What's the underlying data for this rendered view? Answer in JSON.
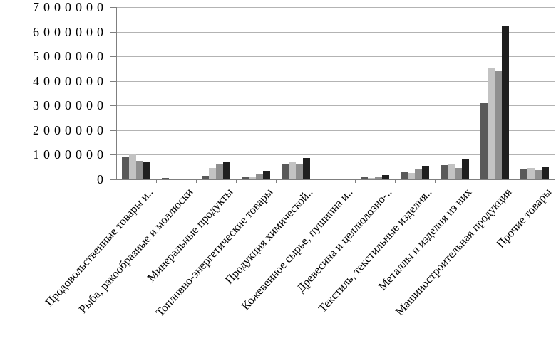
{
  "chart_data": {
    "type": "bar",
    "title": "",
    "xlabel": "",
    "ylabel": "",
    "legend": "none",
    "grid": "horizontal",
    "ylim": [
      0,
      7000000
    ],
    "ytick_step": 1000000,
    "ytick_labels": [
      "0",
      "1000000",
      "2000000",
      "3000000",
      "4000000",
      "5000000",
      "6000000",
      "7000000"
    ],
    "categories": [
      "Продовольственные товары и..",
      "Рыба, ракообразные и моллюски",
      "Минеральные продукты",
      "Топливно-энергетические товары",
      "Продукция химической..",
      "Кожевенное сырье, пушнина и..",
      "Древесина и целлюлозно-..",
      "Текстиль, текстильные изделия..",
      "Металлы и изделия из них",
      "Машиностроительная продукция",
      "Прочие товары"
    ],
    "series": [
      {
        "name": "series-1",
        "color": "#595959",
        "values": [
          900000,
          50000,
          150000,
          120000,
          640000,
          15000,
          80000,
          300000,
          570000,
          3100000,
          400000
        ]
      },
      {
        "name": "series-2",
        "color": "#c3c3c3",
        "values": [
          1030000,
          40000,
          450000,
          80000,
          700000,
          10000,
          60000,
          250000,
          650000,
          4500000,
          470000
        ]
      },
      {
        "name": "series-3",
        "color": "#8f8f8f",
        "values": [
          740000,
          35000,
          620000,
          220000,
          620000,
          10000,
          80000,
          420000,
          470000,
          4400000,
          380000
        ]
      },
      {
        "name": "series-4",
        "color": "#1f1f1f",
        "values": [
          680000,
          25000,
          720000,
          350000,
          870000,
          12000,
          160000,
          540000,
          800000,
          6250000,
          530000
        ]
      }
    ],
    "colors": {
      "gridline": "#b3b3b3",
      "axis": "#7f7f7f",
      "text": "#000000",
      "background": "#ffffff"
    }
  }
}
